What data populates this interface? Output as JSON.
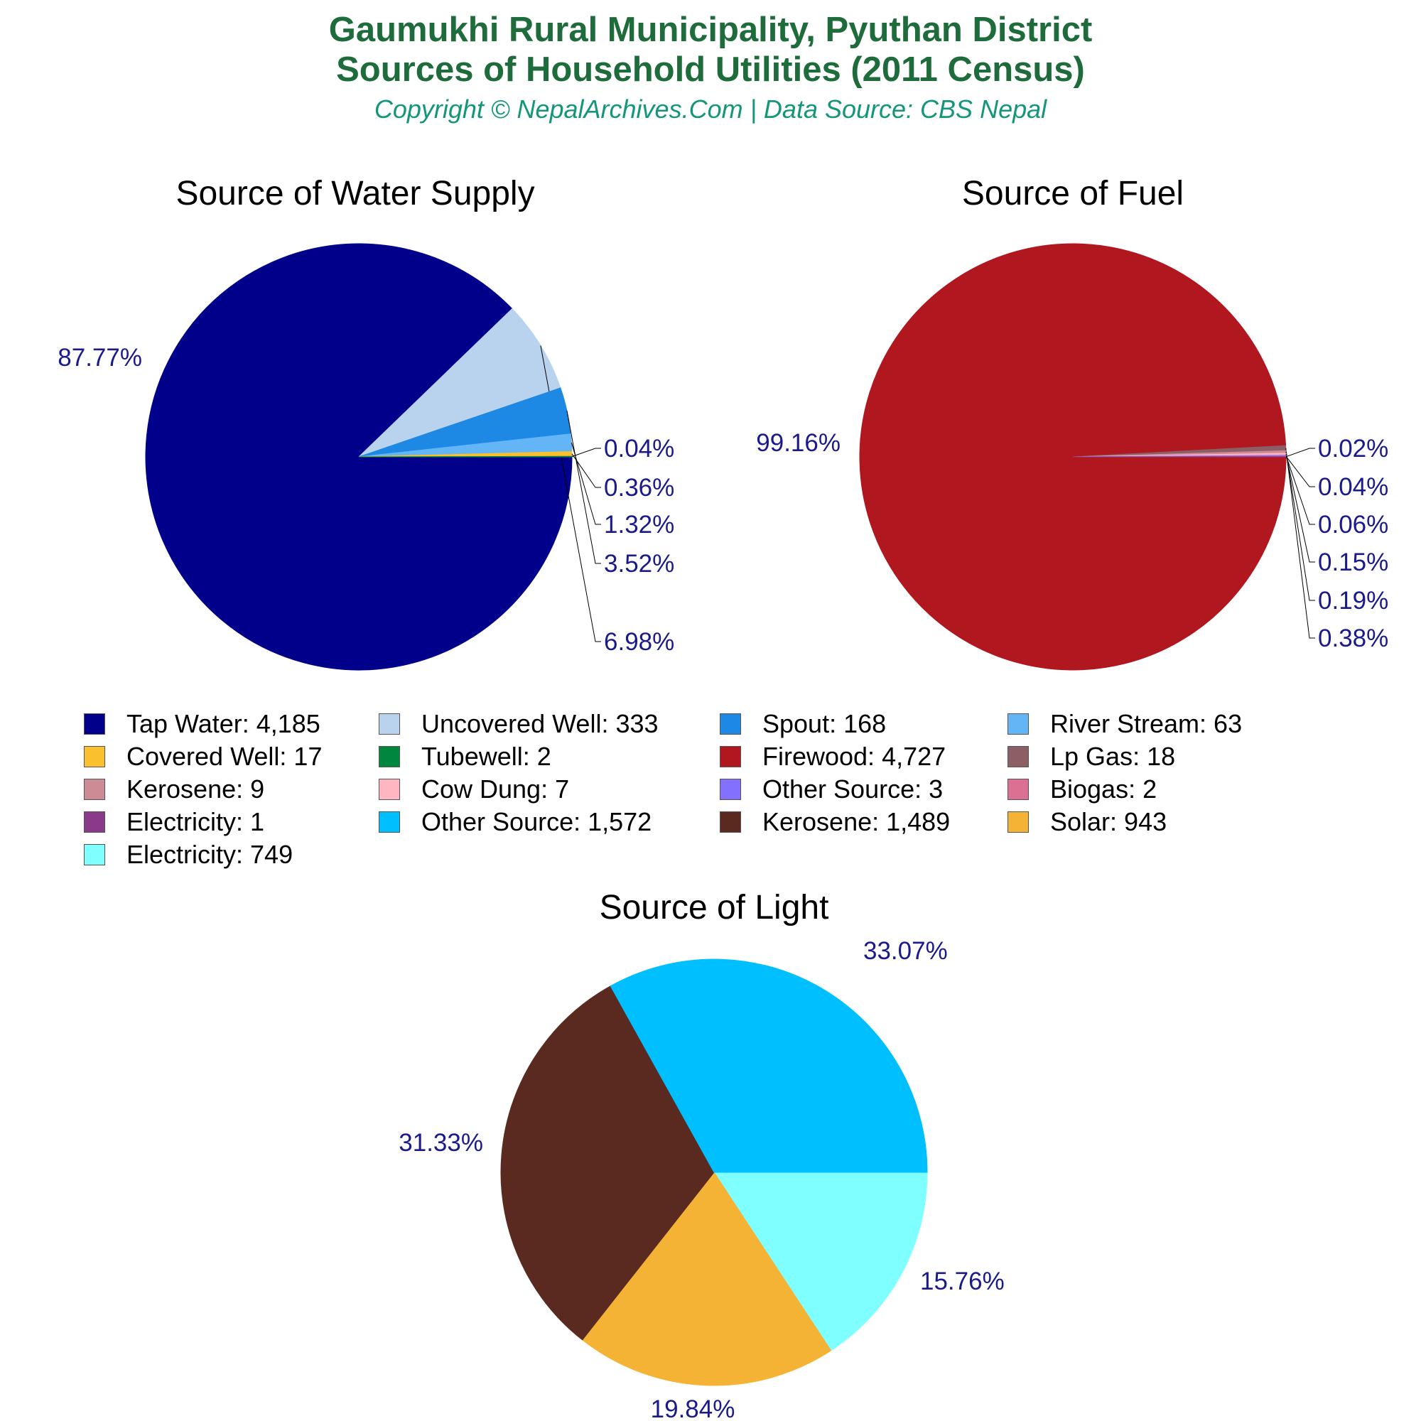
{
  "header": {
    "title_line1": "Gaumukhi Rural Municipality, Pyuthan District",
    "title_line2": "Sources of Household Utilities (2011 Census)",
    "subtitle": "Copyright © NepalArchives.Com | Data Source: CBS Nepal"
  },
  "chart_data": [
    {
      "type": "pie",
      "title": "Source of Water Supply",
      "slices": [
        {
          "label": "Tap Water",
          "value": 4185,
          "pct_label": "87.77%",
          "color": "#00008b"
        },
        {
          "label": "Uncovered Well",
          "value": 333,
          "pct_label": "6.98%",
          "color": "#b9d3ee"
        },
        {
          "label": "Spout",
          "value": 168,
          "pct_label": "3.52%",
          "color": "#1e88e5"
        },
        {
          "label": "River Stream",
          "value": 63,
          "pct_label": "1.32%",
          "color": "#64b5f6"
        },
        {
          "label": "Covered Well",
          "value": 17,
          "pct_label": "0.36%",
          "color": "#fbc02d"
        },
        {
          "label": "Tubewell",
          "value": 2,
          "pct_label": "0.04%",
          "color": "#00873e"
        }
      ]
    },
    {
      "type": "pie",
      "title": "Source of Fuel",
      "slices": [
        {
          "label": "Firewood",
          "value": 4727,
          "pct_label": "99.16%",
          "color": "#b0171f"
        },
        {
          "label": "Lp Gas",
          "value": 18,
          "pct_label": "0.38%",
          "color": "#8b5f65"
        },
        {
          "label": "Kerosene",
          "value": 9,
          "pct_label": "0.19%",
          "color": "#cd8c95"
        },
        {
          "label": "Cow Dung",
          "value": 7,
          "pct_label": "0.15%",
          "color": "#ffb6c1"
        },
        {
          "label": "Other Source",
          "value": 3,
          "pct_label": "0.06%",
          "color": "#8470ff"
        },
        {
          "label": "Biogas",
          "value": 2,
          "pct_label": "0.04%",
          "color": "#db7093"
        },
        {
          "label": "Electricity",
          "value": 1,
          "pct_label": "0.02%",
          "color": "#8b3a8b"
        }
      ]
    },
    {
      "type": "pie",
      "title": "Source of Light",
      "slices": [
        {
          "label": "Electricity",
          "value": 749,
          "pct_label": "15.76%",
          "color": "#7fffff"
        },
        {
          "label": "Solar",
          "value": 943,
          "pct_label": "19.84%",
          "color": "#f5b335"
        },
        {
          "label": "Kerosene",
          "value": 1489,
          "pct_label": "31.33%",
          "color": "#5a2a20"
        },
        {
          "label": "Other Source",
          "value": 1572,
          "pct_label": "33.07%",
          "color": "#00bfff"
        }
      ]
    }
  ],
  "legend": [
    {
      "text": "Tap Water: 4,185",
      "color": "#00008b"
    },
    {
      "text": "Uncovered Well: 333",
      "color": "#b9d3ee"
    },
    {
      "text": "Spout: 168",
      "color": "#1e88e5"
    },
    {
      "text": "River Stream: 63",
      "color": "#64b5f6"
    },
    {
      "text": "Covered Well: 17",
      "color": "#fbc02d"
    },
    {
      "text": "Tubewell: 2",
      "color": "#00873e"
    },
    {
      "text": "Firewood: 4,727",
      "color": "#b0171f"
    },
    {
      "text": "Lp Gas: 18",
      "color": "#8b5f65"
    },
    {
      "text": "Kerosene: 9",
      "color": "#cd8c95"
    },
    {
      "text": "Cow Dung: 7",
      "color": "#ffb6c1"
    },
    {
      "text": "Other Source: 3",
      "color": "#8470ff"
    },
    {
      "text": "Biogas: 2",
      "color": "#db7093"
    },
    {
      "text": "Electricity: 1",
      "color": "#8b3a8b"
    },
    {
      "text": "Other Source: 1,572",
      "color": "#00bfff"
    },
    {
      "text": "Kerosene: 1,489",
      "color": "#5a2a20"
    },
    {
      "text": "Solar: 943",
      "color": "#f5b335"
    },
    {
      "text": "Electricity: 749",
      "color": "#7fffff"
    }
  ]
}
